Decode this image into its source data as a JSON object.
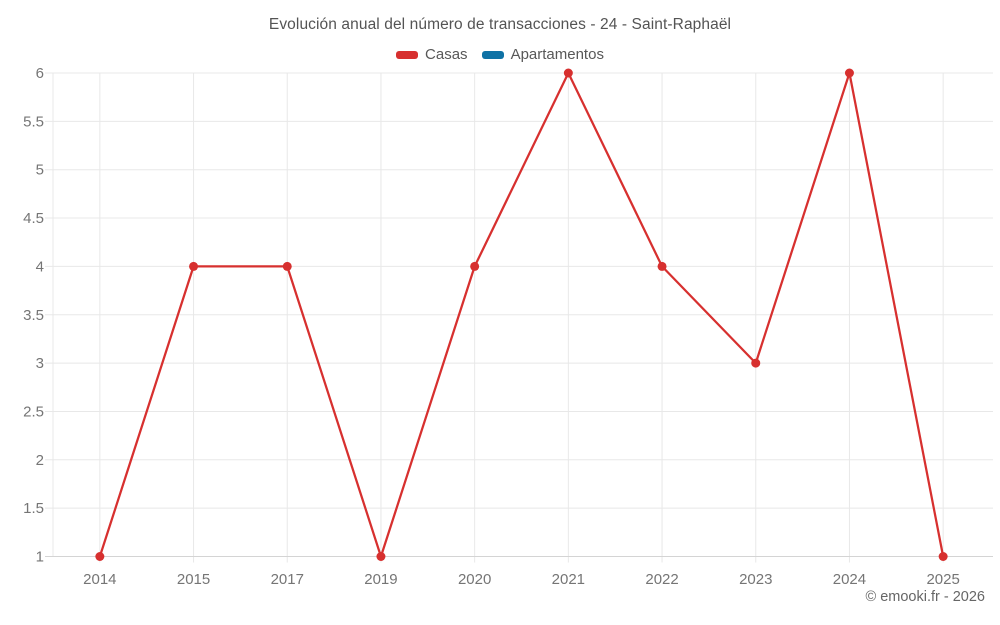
{
  "copyright": "© emooki.fr - 2026",
  "chart_data": {
    "type": "line",
    "title": "Evolución anual del número de transacciones - 24 - Saint-Raphaël",
    "categories": [
      "2014",
      "2015",
      "2017",
      "2019",
      "2020",
      "2021",
      "2022",
      "2023",
      "2024",
      "2025"
    ],
    "series": [
      {
        "name": "Casas",
        "color": "#d7302f",
        "values": [
          1,
          4,
          4,
          1,
          4,
          6,
          4,
          3,
          6,
          1
        ]
      },
      {
        "name": "Apartamentos",
        "color": "#0f72a5",
        "values": []
      }
    ],
    "xlabel": "",
    "ylabel": "",
    "ylim": [
      1,
      6
    ],
    "ytick_step": 0.5,
    "grid": true,
    "legend_position": "top",
    "marker": "circle"
  }
}
